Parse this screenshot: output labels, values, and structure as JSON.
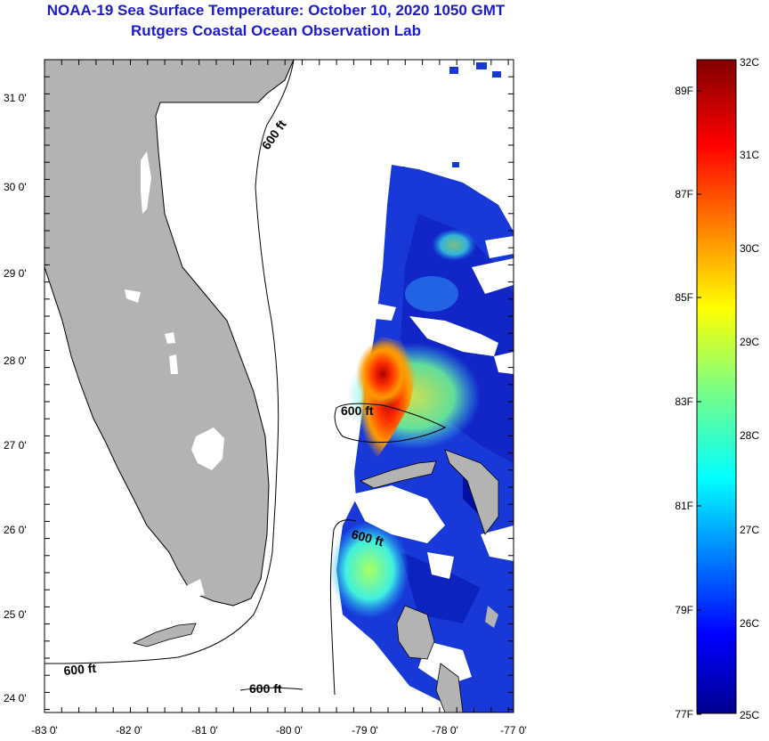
{
  "title": "NOAA-19 Sea Surface Temperature:  October 10, 2020 1050 GMT",
  "subtitle": "Rutgers Coastal Ocean Observation Lab",
  "map": {
    "lon_ticks": [
      "-83 0'",
      "-82 0'",
      "-81 0'",
      "-80 0'",
      "-79 0'",
      "-78 0'",
      "-77 0'"
    ],
    "lat_ticks": [
      "31 0'",
      "30 0'",
      "29 0'",
      "28 0'",
      "27 0'",
      "26 0'",
      "25 0'",
      "24 0'"
    ],
    "contour_labels": [
      "600 ft",
      "600 ft",
      "600 ft",
      "600 ft",
      "600 ft"
    ],
    "land_color": "#b3b3b3"
  },
  "colorbar": {
    "celsius_labels": [
      "32C",
      "31C",
      "30C",
      "29C",
      "28C",
      "27C",
      "26C",
      "25C"
    ],
    "fahrenheit_labels": [
      "89F",
      "87F",
      "85F",
      "83F",
      "81F",
      "79F",
      "77F"
    ]
  }
}
